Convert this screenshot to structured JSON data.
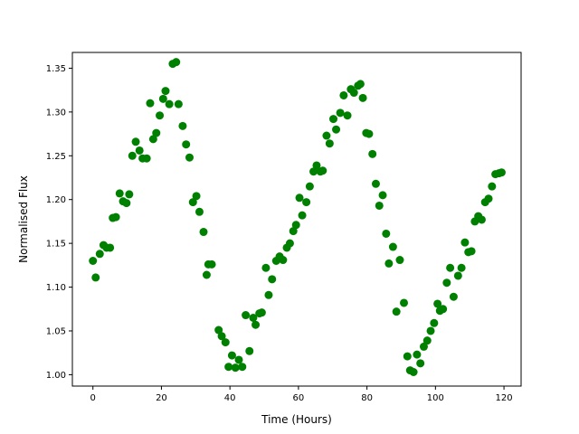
{
  "chart_data": {
    "type": "scatter",
    "title": "",
    "xlabel": "Time (Hours)",
    "ylabel": "Normalised Flux",
    "xlim": [
      -6,
      125
    ],
    "ylim": [
      0.987,
      1.368
    ],
    "xticks": [
      0,
      20,
      40,
      60,
      80,
      100,
      120
    ],
    "xtick_labels": [
      "0",
      "20",
      "40",
      "60",
      "80",
      "100",
      "120"
    ],
    "yticks": [
      1.0,
      1.05,
      1.1,
      1.15,
      1.2,
      1.25,
      1.3,
      1.35
    ],
    "ytick_labels": [
      "1.00",
      "1.05",
      "1.10",
      "1.15",
      "1.20",
      "1.25",
      "1.30",
      "1.35"
    ],
    "grid": false,
    "marker_color": "#008000",
    "series": [
      {
        "x": [
          0.0,
          0.8,
          2.0,
          3.1,
          4.0,
          5.0,
          5.8,
          6.7,
          7.8,
          8.8,
          9.8,
          10.6,
          11.5,
          12.5,
          13.6,
          14.5,
          15.7,
          16.7,
          17.6,
          18.5,
          19.5,
          20.5,
          21.2,
          22.3,
          23.3,
          24.3,
          25.0,
          26.2,
          27.2,
          28.2,
          29.2,
          30.2,
          31.1,
          32.3,
          33.2,
          33.7,
          34.7,
          36.7,
          37.6,
          38.7,
          39.6,
          40.6,
          41.6,
          42.6,
          43.6,
          44.6,
          45.7,
          46.8,
          47.5,
          48.6,
          49.3,
          50.5,
          51.3,
          52.3,
          53.5,
          54.5,
          55.5,
          56.6,
          57.5,
          58.5,
          59.3,
          60.3,
          61.1,
          62.3,
          63.3,
          64.4,
          65.3,
          66.4,
          67.1,
          68.2,
          69.1,
          70.2,
          71.0,
          72.2,
          73.2,
          74.3,
          75.3,
          76.2,
          77.4,
          78.1,
          78.8,
          79.8,
          80.6,
          81.6,
          82.6,
          83.6,
          84.6,
          85.6,
          86.4,
          87.6,
          88.6,
          89.6,
          90.8,
          91.8,
          92.6,
          93.6,
          94.6,
          95.6,
          96.6,
          97.6,
          98.6,
          99.6,
          100.6,
          101.3,
          102.2,
          103.3,
          104.3,
          105.3,
          106.6,
          107.6,
          108.6,
          109.6,
          110.5,
          111.5,
          112.5,
          113.5,
          114.5,
          115.5,
          116.5,
          117.5,
          118.5,
          119.3
        ],
        "y": [
          1.13,
          1.111,
          1.138,
          1.148,
          1.145,
          1.145,
          1.179,
          1.18,
          1.207,
          1.198,
          1.196,
          1.206,
          1.25,
          1.266,
          1.256,
          1.247,
          1.247,
          1.31,
          1.269,
          1.276,
          1.296,
          1.315,
          1.324,
          1.309,
          1.355,
          1.357,
          1.309,
          1.284,
          1.263,
          1.248,
          1.197,
          1.204,
          1.186,
          1.163,
          1.114,
          1.126,
          1.126,
          1.051,
          1.044,
          1.037,
          1.009,
          1.022,
          1.008,
          1.017,
          1.009,
          1.068,
          1.027,
          1.065,
          1.057,
          1.07,
          1.071,
          1.122,
          1.091,
          1.109,
          1.13,
          1.135,
          1.131,
          1.145,
          1.15,
          1.164,
          1.171,
          1.202,
          1.182,
          1.197,
          1.215,
          1.232,
          1.239,
          1.232,
          1.233,
          1.273,
          1.264,
          1.292,
          1.28,
          1.299,
          1.319,
          1.296,
          1.326,
          1.322,
          1.33,
          1.332,
          1.316,
          1.276,
          1.275,
          1.252,
          1.218,
          1.193,
          1.205,
          1.161,
          1.127,
          1.146,
          1.072,
          1.131,
          1.082,
          1.021,
          1.005,
          1.003,
          1.023,
          1.013,
          1.032,
          1.039,
          1.05,
          1.059,
          1.081,
          1.073,
          1.075,
          1.105,
          1.122,
          1.089,
          1.113,
          1.122,
          1.151,
          1.14,
          1.141,
          1.175,
          1.181,
          1.177,
          1.197,
          1.201,
          1.215,
          1.229,
          1.23,
          1.231
        ]
      }
    ]
  }
}
